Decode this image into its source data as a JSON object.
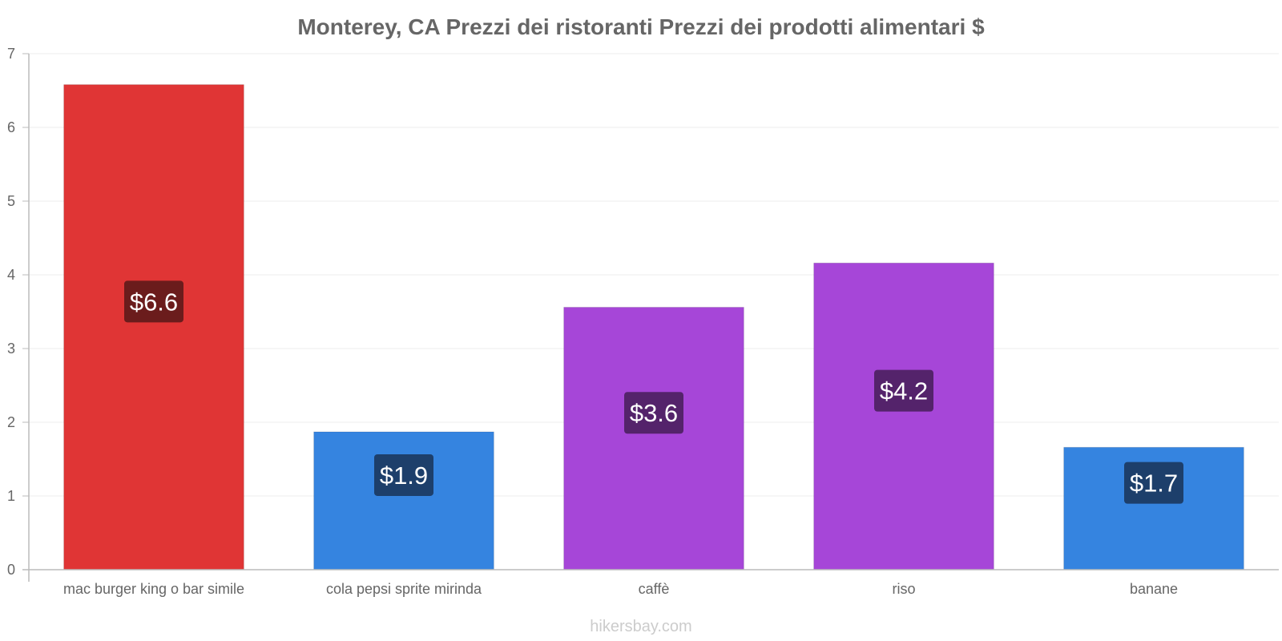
{
  "chart_data": {
    "type": "bar",
    "title": "Monterey, CA Prezzi dei ristoranti Prezzi dei prodotti alimentari $",
    "categories": [
      "mac burger king o bar simile",
      "cola pepsi sprite mirinda",
      "caffè",
      "riso",
      "banane"
    ],
    "values": [
      6.6,
      1.9,
      3.6,
      4.2,
      1.7
    ],
    "display_values": [
      6.58,
      1.87,
      3.56,
      4.16,
      1.66
    ],
    "value_labels": [
      "$6.6",
      "$1.9",
      "$3.6",
      "$4.2",
      "$1.7"
    ],
    "bar_colors": [
      "#e03535",
      "#3584e0",
      "#a646d8",
      "#a646d8",
      "#3584e0"
    ],
    "label_bg_colors": [
      "#6b1c1c",
      "#1d3f6b",
      "#54236b",
      "#54236b",
      "#1d3f6b"
    ],
    "ylim": [
      0,
      7
    ],
    "yticks": [
      "0",
      "1",
      "2",
      "3",
      "4",
      "5",
      "6",
      "7"
    ],
    "xlabel": "",
    "ylabel": "",
    "grid": true,
    "legend": "none"
  },
  "watermark": "hikersbay.com",
  "colors": {
    "axis": "#bbbbbb",
    "grid": "#eeeeee",
    "text": "#666666"
  }
}
